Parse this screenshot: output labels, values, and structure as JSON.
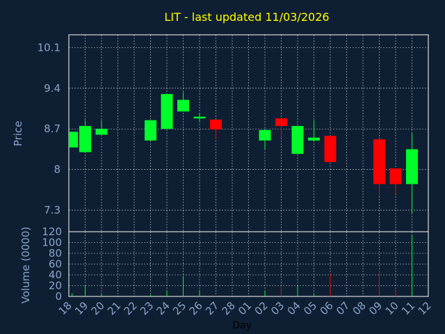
{
  "chart_data": {
    "type": "candlestick",
    "title": "LIT - last updated 11/03/2026",
    "xlabel": "Day",
    "ylabel": "Price",
    "volume_label": "Volume (0000)",
    "grid": true,
    "x_ticks": [
      "18",
      "19",
      "20",
      "21",
      "22",
      "23",
      "24",
      "25",
      "26",
      "27",
      "28",
      "01",
      "02",
      "03",
      "04",
      "05",
      "06",
      "07",
      "08",
      "09",
      "10",
      "11",
      "12"
    ],
    "price_ticks": [
      7.3,
      8,
      8.7,
      9.4,
      10.1
    ],
    "price_tick_labels": [
      "7.3",
      "8",
      "8.7",
      "9.4",
      "10.1"
    ],
    "price_range": [
      6.93,
      10.32
    ],
    "volume_ticks": [
      0,
      20,
      40,
      60,
      80,
      100,
      120
    ],
    "volume_range": [
      0,
      120
    ],
    "colors": {
      "up": "#00ff2a",
      "down": "#ff0000",
      "background": "#0f1f33",
      "grid": "#ffffff",
      "title": "#ffff00",
      "ticks": "#8aa4c8"
    },
    "candles": [
      {
        "x": 0.2,
        "open": 8.38,
        "high": 8.65,
        "low": 8.38,
        "close": 8.65,
        "volume": 6
      },
      {
        "x": 1.0,
        "open": 8.3,
        "high": 8.85,
        "low": 8.3,
        "close": 8.75,
        "volume": 20
      },
      {
        "x": 2.0,
        "open": 8.6,
        "high": 8.85,
        "low": 8.6,
        "close": 8.7,
        "volume": 4
      },
      {
        "x": 5.0,
        "open": 8.5,
        "high": 8.85,
        "low": 8.5,
        "close": 8.85,
        "volume": 3
      },
      {
        "x": 6.0,
        "open": 8.7,
        "high": 9.3,
        "low": 8.7,
        "close": 9.3,
        "volume": 10
      },
      {
        "x": 7.0,
        "open": 9.0,
        "high": 9.33,
        "low": 9.0,
        "close": 9.2,
        "volume": 38
      },
      {
        "x": 8.0,
        "open": 8.88,
        "high": 8.98,
        "low": 8.82,
        "close": 8.91,
        "volume": 12
      },
      {
        "x": 9.0,
        "open": 8.86,
        "high": 8.86,
        "low": 8.52,
        "close": 8.69,
        "volume": 2
      },
      {
        "x": 12.0,
        "open": 8.5,
        "high": 8.7,
        "low": 8.35,
        "close": 8.68,
        "volume": 10
      },
      {
        "x": 13.0,
        "open": 8.88,
        "high": 8.88,
        "low": 8.55,
        "close": 8.75,
        "volume": 18
      },
      {
        "x": 14.0,
        "open": 8.27,
        "high": 8.75,
        "low": 8.27,
        "close": 8.75,
        "volume": 20
      },
      {
        "x": 15.0,
        "open": 8.5,
        "high": 8.85,
        "low": 8.5,
        "close": 8.55,
        "volume": 4
      },
      {
        "x": 16.0,
        "open": 8.58,
        "high": 8.58,
        "low": 8.13,
        "close": 8.13,
        "volume": 42
      },
      {
        "x": 19.0,
        "open": 8.52,
        "high": 8.52,
        "low": 7.55,
        "close": 7.75,
        "volume": 48
      },
      {
        "x": 20.0,
        "open": 8.02,
        "high": 8.02,
        "low": 7.58,
        "close": 7.75,
        "volume": 10
      },
      {
        "x": 21.0,
        "open": 7.75,
        "high": 8.62,
        "low": 7.25,
        "close": 8.35,
        "volume": 115
      }
    ]
  }
}
